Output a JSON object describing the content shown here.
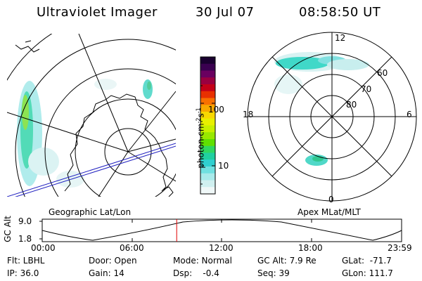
{
  "header": {
    "title": "Ultraviolet Imager",
    "date": "30 Jul 07",
    "time": "08:58:50 UT"
  },
  "colorbar": {
    "label_main": "photon cm",
    "label_sup1": "-2",
    "label_mid": "s",
    "label_sup2": "-1",
    "ticks": [
      "100",
      "10"
    ],
    "colors": [
      "#1a0030",
      "#3a0050",
      "#6a0060",
      "#9a0040",
      "#c40018",
      "#e83000",
      "#f87000",
      "#f8a800",
      "#f8d800",
      "#e8f000",
      "#c8f000",
      "#98e800",
      "#60e000",
      "#30d860",
      "#20d0a0",
      "#30d0d0",
      "#70e0e0",
      "#a8eaea",
      "#d0f0f0",
      "#f0f8f8"
    ]
  },
  "left_panel": {
    "caption": "Geographic Lat/Lon"
  },
  "right_panel": {
    "caption": "Apex MLat/MLT",
    "mlt_labels": {
      "top": "12",
      "bottom": "0",
      "left": "18",
      "right": "6"
    },
    "lat_labels": [
      "60",
      "70",
      "80"
    ]
  },
  "timeline": {
    "ylabel": "GC Alt",
    "ytick_top": "9.0",
    "ytick_bottom": "1.8",
    "xticks": [
      "00:00",
      "06:00",
      "12:00",
      "18:00",
      "23:59"
    ],
    "marker_time_fraction": 0.3742,
    "marker_color": "#e00000"
  },
  "info": {
    "flt": "Flt: LBHL",
    "ip": "IP: 36.0",
    "door": "Door: Open",
    "gain": "Gain: 14",
    "mode": "Mode: Normal",
    "dsp": "Dsp:    -0.4",
    "gcalt": "GC Alt: 7.9 Re",
    "seq": "Seq: 39",
    "glat": "GLat:  -71.7",
    "glon": "GLon: 111.7"
  }
}
